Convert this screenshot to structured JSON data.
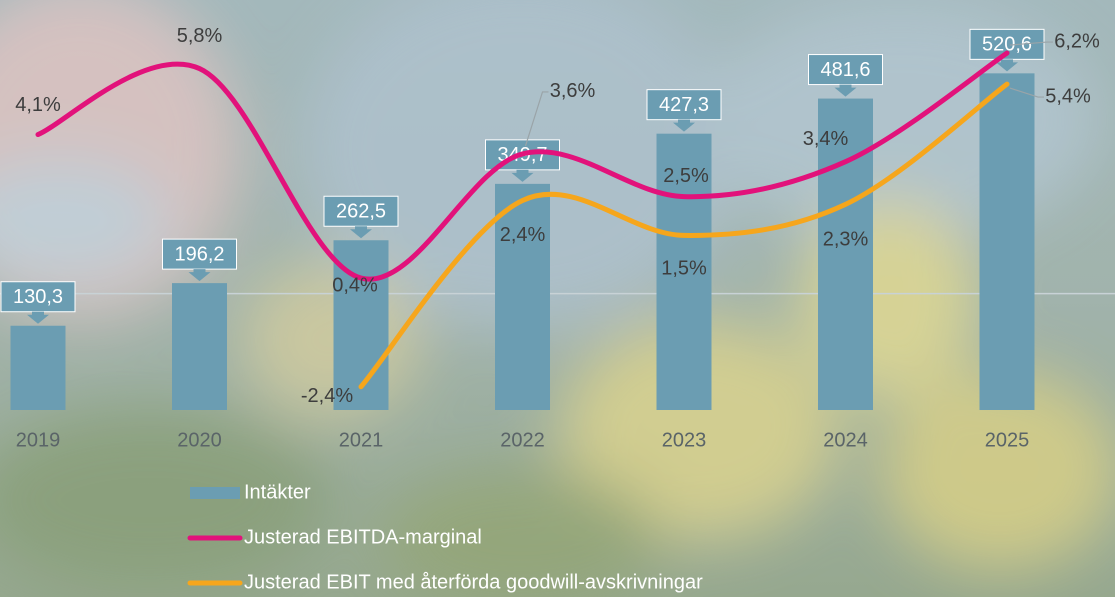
{
  "chart_data": {
    "type": "bar",
    "categories": [
      "2019",
      "2020",
      "2021",
      "2022",
      "2023",
      "2024",
      "2025"
    ],
    "series": [
      {
        "name": "Intäkter",
        "type": "bar",
        "color": "#6b9db2",
        "values": [
          130.3,
          196.2,
          262.5,
          349.7,
          427.3,
          481.6,
          520.6
        ],
        "value_labels": [
          "130,3",
          "196,2",
          "262,5",
          "349,7",
          "427,3",
          "481,6",
          "520,6"
        ]
      },
      {
        "name": "Justerad EBITDA-marginal",
        "type": "line",
        "axis": "y2",
        "color": "#e2127b",
        "values": [
          4.1,
          5.8,
          0.4,
          3.6,
          2.5,
          3.4,
          6.2
        ],
        "value_labels": [
          "4,1%",
          "5,8%",
          "0,4%",
          "3,6%",
          "2,5%",
          "3,4%",
          "6,2%"
        ]
      },
      {
        "name": "Justerad EBIT med återförda goodwill-avskrivningar",
        "type": "line",
        "axis": "y2",
        "color": "#f6a61c",
        "values": [
          null,
          null,
          -2.4,
          2.4,
          1.5,
          2.3,
          5.4
        ],
        "value_labels": [
          null,
          null,
          "-2,4%",
          "2,4%",
          "1,5%",
          "2,3%",
          "5,4%"
        ]
      }
    ],
    "ylim": [
      0,
      600
    ],
    "y2lim": [
      -3,
      7
    ]
  }
}
